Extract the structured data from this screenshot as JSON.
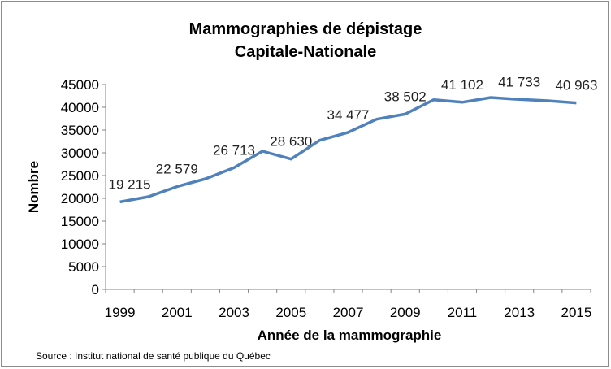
{
  "chart_data": {
    "type": "line",
    "title": "Mammographies de dépistage",
    "subtitle": "Capitale-Nationale",
    "xlabel": "Année de la mammographie",
    "ylabel": "Nombre",
    "ylim": [
      0,
      45000
    ],
    "yticks": [
      0,
      5000,
      10000,
      15000,
      20000,
      25000,
      30000,
      35000,
      40000,
      45000
    ],
    "xticks": [
      "1999",
      "2001",
      "2003",
      "2005",
      "2007",
      "2009",
      "2011",
      "2013",
      "2015"
    ],
    "grid": false,
    "legend": "none",
    "series": [
      {
        "name": "Mammographies",
        "color": "#4f81bd",
        "x": [
          1999,
          2000,
          2001,
          2002,
          2003,
          2004,
          2005,
          2006,
          2007,
          2008,
          2009,
          2010,
          2011,
          2012,
          2013,
          2014,
          2015
        ],
        "values": [
          19215,
          20350,
          22579,
          24290,
          26713,
          30360,
          28630,
          32730,
          34477,
          37380,
          38502,
          41660,
          41102,
          42140,
          41733,
          41430,
          40963
        ]
      }
    ],
    "data_labels": [
      {
        "x": 1999,
        "text": "19 215"
      },
      {
        "x": 2001,
        "text": "22 579"
      },
      {
        "x": 2003,
        "text": "26 713"
      },
      {
        "x": 2005,
        "text": "28 630"
      },
      {
        "x": 2007,
        "text": "34 477"
      },
      {
        "x": 2009,
        "text": "38 502"
      },
      {
        "x": 2011,
        "text": "41 102"
      },
      {
        "x": 2013,
        "text": "41 733"
      },
      {
        "x": 2015,
        "text": "40 963"
      }
    ],
    "source": "Source : Institut national de santé publique du Québec"
  }
}
